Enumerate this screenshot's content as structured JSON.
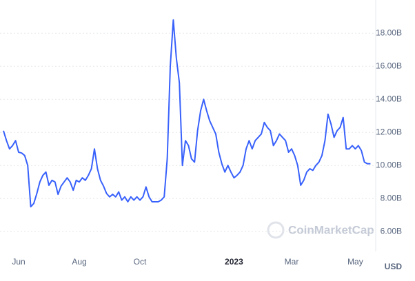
{
  "chart_data": {
    "type": "line",
    "color": "#3861fb",
    "categories": [
      null,
      null,
      null,
      null,
      null,
      "Jun",
      null,
      null,
      null,
      null,
      null,
      null,
      null,
      null,
      null,
      null,
      null,
      null,
      null,
      null,
      null,
      null,
      null,
      null,
      null,
      "Aug",
      null,
      null,
      null,
      null,
      null,
      null,
      null,
      null,
      null,
      null,
      null,
      null,
      null,
      null,
      null,
      null,
      null,
      null,
      null,
      "Oct",
      null,
      null,
      null,
      null,
      null,
      null,
      null,
      null,
      null,
      null,
      null,
      null,
      null,
      null,
      null,
      null,
      null,
      null,
      null,
      null,
      null,
      null,
      null,
      null,
      null,
      null,
      null,
      null,
      null,
      null,
      "2023",
      null,
      null,
      null,
      null,
      null,
      null,
      null,
      null,
      null,
      null,
      null,
      null,
      null,
      null,
      null,
      null,
      null,
      null,
      "Mar",
      null,
      null,
      null,
      null,
      null,
      null,
      null,
      null,
      null,
      null,
      null,
      null,
      null,
      null,
      null,
      null,
      null,
      null,
      null,
      null,
      "May",
      null,
      null,
      null,
      null,
      null
    ],
    "values": [
      12.1,
      11.5,
      11.0,
      11.2,
      11.5,
      10.8,
      10.75,
      10.6,
      10.0,
      7.5,
      7.7,
      8.3,
      9.0,
      9.4,
      9.6,
      8.8,
      9.1,
      9.0,
      8.25,
      8.75,
      9.0,
      9.25,
      9.0,
      8.5,
      9.1,
      9.0,
      9.25,
      9.1,
      9.4,
      9.8,
      11.0,
      9.8,
      9.1,
      8.75,
      8.3,
      8.1,
      8.25,
      8.1,
      8.4,
      7.9,
      8.1,
      7.8,
      8.1,
      7.9,
      8.1,
      7.9,
      8.1,
      8.7,
      8.1,
      7.8,
      7.8,
      7.8,
      7.9,
      8.1,
      10.4,
      16.0,
      18.8,
      16.5,
      15.0,
      10.0,
      11.5,
      11.2,
      10.4,
      10.2,
      12.1,
      13.3,
      14.0,
      13.3,
      12.7,
      12.3,
      11.9,
      10.8,
      10.1,
      9.6,
      10.0,
      9.6,
      9.25,
      9.4,
      9.6,
      10.0,
      11.0,
      11.5,
      11.0,
      11.5,
      11.7,
      11.9,
      12.6,
      12.3,
      12.1,
      11.2,
      11.5,
      11.9,
      11.7,
      11.5,
      10.8,
      11.0,
      10.6,
      10.0,
      8.8,
      9.1,
      9.6,
      9.8,
      9.7,
      10.0,
      10.2,
      10.6,
      11.5,
      13.1,
      12.5,
      11.7,
      12.1,
      12.3,
      12.9,
      11.0,
      11.0,
      11.2,
      11.0,
      11.2,
      10.9,
      10.2,
      10.1,
      10.1
    ],
    "ylim": [
      4.8,
      19.8
    ],
    "yticks": [
      {
        "value": 6,
        "label": "6.00B"
      },
      {
        "value": 8,
        "label": "8.00B"
      },
      {
        "value": 10,
        "label": "10.00B"
      },
      {
        "value": 12,
        "label": "12.00B"
      },
      {
        "value": 14,
        "label": "14.00B"
      },
      {
        "value": 16,
        "label": "16.00B"
      },
      {
        "value": 18,
        "label": "18.00B"
      }
    ],
    "grid": true,
    "currency": "USD",
    "watermark": "CoinMarketCap"
  }
}
